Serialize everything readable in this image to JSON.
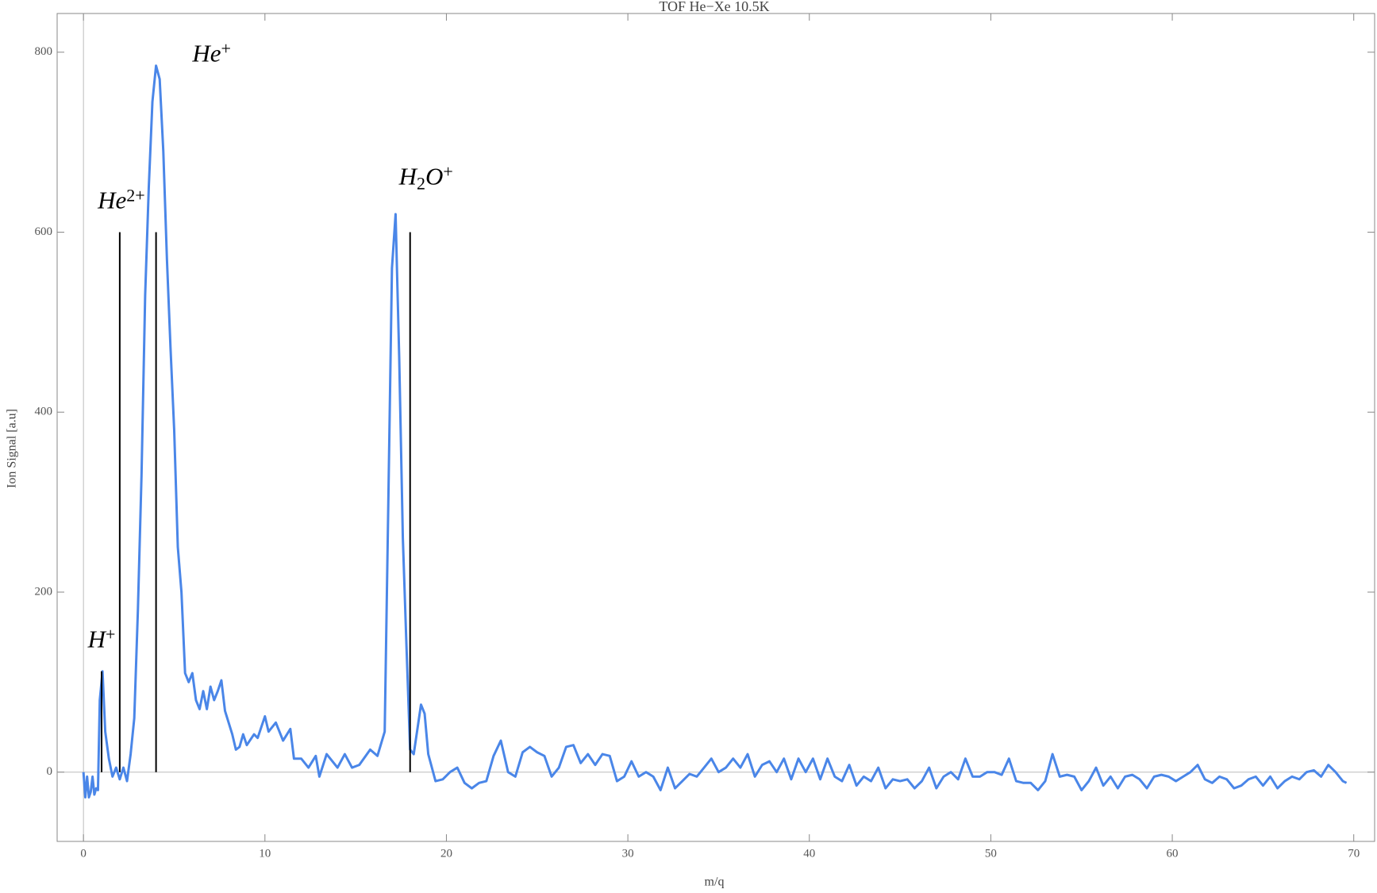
{
  "chart_data": {
    "type": "line",
    "title": "TOF He−Xe  10.5K",
    "x_label": "m/q",
    "y_label": "Ion Signal [a.u]",
    "color": "#4a86e8",
    "x": [
      0,
      0.1,
      0.2,
      0.3,
      0.4,
      0.5,
      0.6,
      0.7,
      0.8,
      0.9,
      1.05,
      1.2,
      1.4,
      1.6,
      1.8,
      2.0,
      2.2,
      2.4,
      2.6,
      2.8,
      3.0,
      3.2,
      3.4,
      3.6,
      3.8,
      4.0,
      4.2,
      4.4,
      4.6,
      4.8,
      5.0,
      5.2,
      5.4,
      5.6,
      5.8,
      6.0,
      6.2,
      6.4,
      6.6,
      6.8,
      7.0,
      7.2,
      7.4,
      7.6,
      7.8,
      8.0,
      8.2,
      8.4,
      8.6,
      8.8,
      9.0,
      9.4,
      9.6,
      10.0,
      10.2,
      10.6,
      11.0,
      11.4,
      11.6,
      12.0,
      12.4,
      12.8,
      13.0,
      13.4,
      13.6,
      14.0,
      14.4,
      14.8,
      15.2,
      15.8,
      16.2,
      16.6,
      16.8,
      17.0,
      17.2,
      17.4,
      17.6,
      17.8,
      18.0,
      18.2,
      18.6,
      18.8,
      19.0,
      19.4,
      19.8,
      20.2,
      20.6,
      21.0,
      21.4,
      21.8,
      22.2,
      22.6,
      23.0,
      23.4,
      23.8,
      24.2,
      24.6,
      25.0,
      25.4,
      25.8,
      26.2,
      26.6,
      27.0,
      27.4,
      27.8,
      28.2,
      28.6,
      29.0,
      29.4,
      29.8,
      30.2,
      30.6,
      31.0,
      31.4,
      31.8,
      32.2,
      32.6,
      33.0,
      33.4,
      33.8,
      34.2,
      34.6,
      35.0,
      35.4,
      35.8,
      36.2,
      36.6,
      37.0,
      37.4,
      37.8,
      38.2,
      38.6,
      39.0,
      39.4,
      39.8,
      40.2,
      40.6,
      41.0,
      41.4,
      41.8,
      42.2,
      42.6,
      43.0,
      43.4,
      43.8,
      44.2,
      44.6,
      45.0,
      45.4,
      45.8,
      46.2,
      46.6,
      47.0,
      47.4,
      47.8,
      48.2,
      48.6,
      49.0,
      49.4,
      49.8,
      50.2,
      50.6,
      51.0,
      51.4,
      51.8,
      52.2,
      52.6,
      53.0,
      53.4,
      53.8,
      54.2,
      54.6,
      55.0,
      55.4,
      55.8,
      56.2,
      56.6,
      57.0,
      57.4,
      57.8,
      58.2,
      58.6,
      59.0,
      59.4,
      59.8,
      60.2,
      60.6,
      61.0,
      61.4,
      61.8,
      62.2,
      62.6,
      63.0,
      63.4,
      63.8,
      64.2,
      64.6,
      65.0,
      65.4,
      65.8,
      66.2,
      66.6,
      67.0,
      67.4,
      67.8,
      68.2,
      68.6,
      69.0,
      69.4,
      69.6
    ],
    "values": [
      0,
      -28,
      -5,
      -28,
      -22,
      -5,
      -25,
      -18,
      -20,
      80,
      112,
      45,
      15,
      -5,
      5,
      -8,
      5,
      -10,
      20,
      60,
      180,
      330,
      530,
      650,
      745,
      785,
      770,
      690,
      570,
      470,
      380,
      250,
      200,
      110,
      100,
      110,
      80,
      70,
      90,
      70,
      95,
      80,
      90,
      102,
      68,
      55,
      42,
      25,
      28,
      42,
      30,
      42,
      38,
      62,
      45,
      55,
      35,
      48,
      15,
      15,
      5,
      18,
      -5,
      20,
      15,
      5,
      20,
      5,
      8,
      25,
      18,
      45,
      300,
      560,
      620,
      460,
      260,
      140,
      25,
      20,
      75,
      65,
      20,
      -10,
      -8,
      0,
      5,
      -12,
      -18,
      -12,
      -10,
      18,
      35,
      0,
      -5,
      22,
      28,
      22,
      18,
      -5,
      5,
      28,
      30,
      10,
      20,
      8,
      20,
      18,
      -10,
      -5,
      12,
      -5,
      0,
      -5,
      -20,
      5,
      -18,
      -10,
      -2,
      -5,
      5,
      15,
      0,
      5,
      15,
      5,
      20,
      -5,
      8,
      12,
      0,
      15,
      -8,
      15,
      0,
      15,
      -8,
      15,
      -5,
      -10,
      8,
      -15,
      -5,
      -10,
      5,
      -18,
      -8,
      -10,
      -8,
      -18,
      -10,
      5,
      -18,
      -5,
      0,
      -8,
      15,
      -5,
      -5,
      0,
      0,
      -3,
      15,
      -10,
      -12,
      -12,
      -20,
      -10,
      20,
      -5,
      -3,
      -5,
      -20,
      -10,
      5,
      -15,
      -5,
      -18,
      -5,
      -3,
      -8,
      -18,
      -5,
      -3,
      -5,
      -10,
      -5,
      0,
      8,
      -8,
      -12,
      -5,
      -8,
      -18,
      -15,
      -8,
      -5,
      -15,
      -5,
      -18,
      -10,
      -5,
      -8,
      0,
      2,
      -5,
      8,
      0,
      -10,
      -12
    ],
    "markers": {
      "x": [
        1,
        2,
        4,
        18
      ],
      "values": [
        112,
        600,
        600,
        600
      ],
      "color": "#000000"
    },
    "annotations": [
      {
        "text": "H",
        "sup": "+"
      },
      {
        "text": "He",
        "sup": "2+"
      },
      {
        "text": "He",
        "sup": "+"
      },
      {
        "text": "H",
        "sub": "2",
        "text_after": "O",
        "sup": "+"
      }
    ],
    "xlim": [
      -1.45,
      71.15
    ],
    "ylim": [
      -77,
      843
    ],
    "xticks": [
      0,
      10,
      20,
      30,
      40,
      50,
      60,
      70
    ],
    "yticks": [
      0,
      200,
      400,
      600,
      800
    ]
  }
}
